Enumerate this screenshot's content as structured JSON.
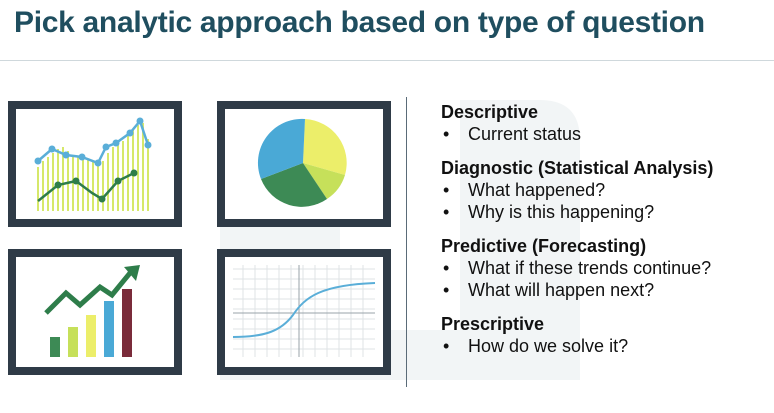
{
  "title": "Pick analytic approach based on type of question",
  "sections": [
    {
      "heading": "Descriptive",
      "bullets": [
        "Current status"
      ]
    },
    {
      "heading": "Diagnostic (Statistical Analysis)",
      "bullets": [
        "What happened?",
        "Why is this happening?"
      ]
    },
    {
      "heading": "Predictive (Forecasting)",
      "bullets": [
        "What if these trends continue?",
        "What will happen next?"
      ]
    },
    {
      "heading": "Prescriptive",
      "bullets": [
        "How do we solve it?"
      ]
    }
  ],
  "bullet_char": "•",
  "colors": {
    "title": "#1f4e5f",
    "frame": "#2f3b47",
    "line_blue": "#5aaed8",
    "line_green": "#2e7d4a",
    "bar_yellow_green": "#d6e86a",
    "pie_yellow": "#ecee6a",
    "pie_lime": "#c6e05a",
    "pie_green": "#3d8a55",
    "pie_blue": "#4aa9d6",
    "bar_dark_red": "#7a2b3a",
    "bar_blue": "#4aa9d6",
    "bar_green": "#3d8a55"
  },
  "icons": [
    "line-chart-thumbnail",
    "pie-chart-thumbnail",
    "bar-trend-chart-thumbnail",
    "s-curve-chart-thumbnail"
  ]
}
